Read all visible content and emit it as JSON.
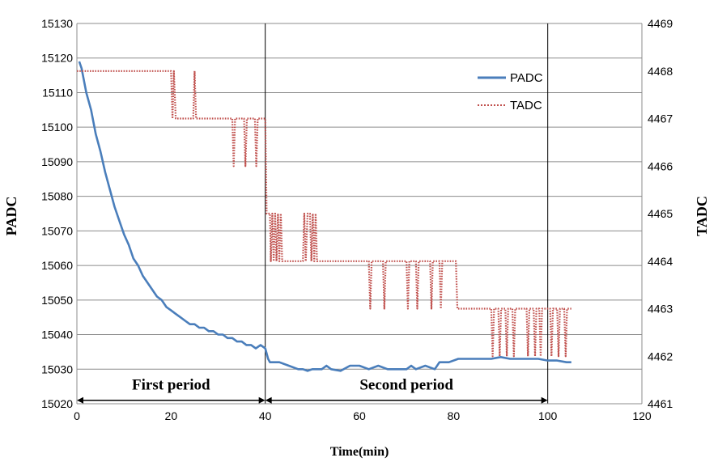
{
  "chart_data": {
    "type": "line",
    "xlabel": "Time(min)",
    "ylabel_left": "PADC",
    "ylabel_right": "TADC",
    "xlim": [
      0,
      120
    ],
    "ylim_left": [
      15020,
      15130
    ],
    "ylim_right": [
      4461,
      4469
    ],
    "x_ticks": [
      "0",
      "20",
      "40",
      "60",
      "80",
      "100",
      "120"
    ],
    "y_left_ticks": [
      "15020",
      "15030",
      "15040",
      "15050",
      "15060",
      "15070",
      "15080",
      "15090",
      "15100",
      "15110",
      "15120",
      "15130"
    ],
    "y_right_ticks": [
      "4461",
      "4462",
      "4463",
      "4464",
      "4465",
      "4466",
      "4467",
      "4468",
      "4469"
    ],
    "grid": "horizontal",
    "legend_position": "top-right",
    "legend": [
      "PADC",
      "TADC"
    ],
    "colors": {
      "PADC": "#4a7ebb",
      "TADC": "#c0504d"
    },
    "vertical_lines_x": [
      40,
      100
    ],
    "periods": [
      {
        "label": "First period",
        "x_start": 0,
        "x_end": 40,
        "level": 15021
      },
      {
        "label": "Second period",
        "x_start": 40,
        "x_end": 100,
        "level": 15021
      }
    ],
    "series": [
      {
        "name": "PADC",
        "axis": "left",
        "style": "solid",
        "points": [
          [
            0.5,
            15119
          ],
          [
            1,
            15117
          ],
          [
            2,
            15110
          ],
          [
            3,
            15105
          ],
          [
            4,
            15098
          ],
          [
            5,
            15093
          ],
          [
            6,
            15087
          ],
          [
            7,
            15082
          ],
          [
            8,
            15077
          ],
          [
            9,
            15073
          ],
          [
            10,
            15069
          ],
          [
            11,
            15066
          ],
          [
            12,
            15062
          ],
          [
            13,
            15060
          ],
          [
            14,
            15057
          ],
          [
            15,
            15055
          ],
          [
            16,
            15053
          ],
          [
            17,
            15051
          ],
          [
            18,
            15050
          ],
          [
            19,
            15048
          ],
          [
            20,
            15047
          ],
          [
            21,
            15046
          ],
          [
            22,
            15045
          ],
          [
            23,
            15044
          ],
          [
            24,
            15043
          ],
          [
            25,
            15043
          ],
          [
            26,
            15042
          ],
          [
            27,
            15042
          ],
          [
            28,
            15041
          ],
          [
            29,
            15041
          ],
          [
            30,
            15040
          ],
          [
            31,
            15040
          ],
          [
            32,
            15039
          ],
          [
            33,
            15039
          ],
          [
            34,
            15038
          ],
          [
            35,
            15038
          ],
          [
            36,
            15037
          ],
          [
            37,
            15037
          ],
          [
            38,
            15036
          ],
          [
            39,
            15037
          ],
          [
            40,
            15036
          ],
          [
            40.6,
            15033
          ],
          [
            41,
            15032
          ],
          [
            43,
            15032
          ],
          [
            45,
            15031
          ],
          [
            47,
            15030
          ],
          [
            48,
            15030
          ],
          [
            49,
            15029.5
          ],
          [
            50,
            15030
          ],
          [
            52,
            15030
          ],
          [
            53,
            15031
          ],
          [
            54,
            15030
          ],
          [
            56,
            15029.5
          ],
          [
            58,
            15031
          ],
          [
            60,
            15031
          ],
          [
            62,
            15030
          ],
          [
            64,
            15031
          ],
          [
            66,
            15030
          ],
          [
            68,
            15030
          ],
          [
            70,
            15030
          ],
          [
            71,
            15031
          ],
          [
            72,
            15030
          ],
          [
            74,
            15031
          ],
          [
            76,
            15030
          ],
          [
            77,
            15032
          ],
          [
            79,
            15032
          ],
          [
            81,
            15033
          ],
          [
            83,
            15033
          ],
          [
            84,
            15033
          ],
          [
            86,
            15033
          ],
          [
            88,
            15033
          ],
          [
            90,
            15033.5
          ],
          [
            92,
            15033
          ],
          [
            94,
            15033
          ],
          [
            96,
            15033
          ],
          [
            98,
            15033
          ],
          [
            100,
            15032.5
          ],
          [
            102,
            15032.5
          ],
          [
            104,
            15032
          ],
          [
            105,
            15032
          ]
        ]
      },
      {
        "name": "TADC",
        "axis": "right",
        "style": "dotted",
        "points": [
          [
            0,
            4468
          ],
          [
            20,
            4468
          ],
          [
            20.3,
            4467
          ],
          [
            20.6,
            4468
          ],
          [
            21,
            4467
          ],
          [
            24.7,
            4467
          ],
          [
            25,
            4468
          ],
          [
            25.3,
            4467
          ],
          [
            33,
            4467
          ],
          [
            33.3,
            4466
          ],
          [
            33.6,
            4467
          ],
          [
            35.5,
            4467
          ],
          [
            35.8,
            4466
          ],
          [
            36.1,
            4467
          ],
          [
            37.8,
            4467
          ],
          [
            38.1,
            4466
          ],
          [
            38.4,
            4467
          ],
          [
            40,
            4467
          ],
          [
            40.3,
            4465
          ],
          [
            41,
            4465
          ],
          [
            41.2,
            4464
          ],
          [
            41.5,
            4465
          ],
          [
            41.8,
            4464
          ],
          [
            42.1,
            4465
          ],
          [
            42.4,
            4464
          ],
          [
            42.7,
            4465
          ],
          [
            43,
            4464
          ],
          [
            43.3,
            4465
          ],
          [
            43.6,
            4464
          ],
          [
            48,
            4464
          ],
          [
            48.3,
            4465
          ],
          [
            48.6,
            4464
          ],
          [
            49,
            4465
          ],
          [
            49.5,
            4465
          ],
          [
            49.8,
            4464
          ],
          [
            50.1,
            4465
          ],
          [
            50.4,
            4464
          ],
          [
            50.7,
            4465
          ],
          [
            51,
            4464
          ],
          [
            62,
            4464
          ],
          [
            62.3,
            4463
          ],
          [
            62.6,
            4464
          ],
          [
            65,
            4464
          ],
          [
            65.3,
            4463
          ],
          [
            65.6,
            4464
          ],
          [
            70,
            4464
          ],
          [
            70.3,
            4463
          ],
          [
            70.6,
            4464
          ],
          [
            72,
            4464
          ],
          [
            72.3,
            4463
          ],
          [
            72.6,
            4464
          ],
          [
            75,
            4464
          ],
          [
            75.3,
            4463
          ],
          [
            75.6,
            4464
          ],
          [
            77,
            4464
          ],
          [
            77.3,
            4463
          ],
          [
            77.6,
            4464
          ],
          [
            80.5,
            4464
          ],
          [
            80.8,
            4463
          ],
          [
            88,
            4463
          ],
          [
            88.3,
            4462
          ],
          [
            88.6,
            4463
          ],
          [
            89.5,
            4463
          ],
          [
            89.8,
            4462
          ],
          [
            90.1,
            4463
          ],
          [
            91,
            4463
          ],
          [
            91.3,
            4462
          ],
          [
            91.6,
            4463
          ],
          [
            92.5,
            4463
          ],
          [
            92.8,
            4462
          ],
          [
            93.1,
            4463
          ],
          [
            95.5,
            4463
          ],
          [
            95.8,
            4462
          ],
          [
            96.1,
            4463
          ],
          [
            97,
            4463
          ],
          [
            97.3,
            4462
          ],
          [
            97.6,
            4463
          ],
          [
            98.2,
            4463
          ],
          [
            98.5,
            4462
          ],
          [
            98.8,
            4463
          ],
          [
            100.5,
            4463
          ],
          [
            100.8,
            4462
          ],
          [
            101.1,
            4463
          ],
          [
            102,
            4463
          ],
          [
            102.3,
            4462
          ],
          [
            102.6,
            4463
          ],
          [
            103.5,
            4463
          ],
          [
            103.8,
            4462
          ],
          [
            104.1,
            4463
          ],
          [
            105,
            4463
          ]
        ]
      }
    ]
  }
}
